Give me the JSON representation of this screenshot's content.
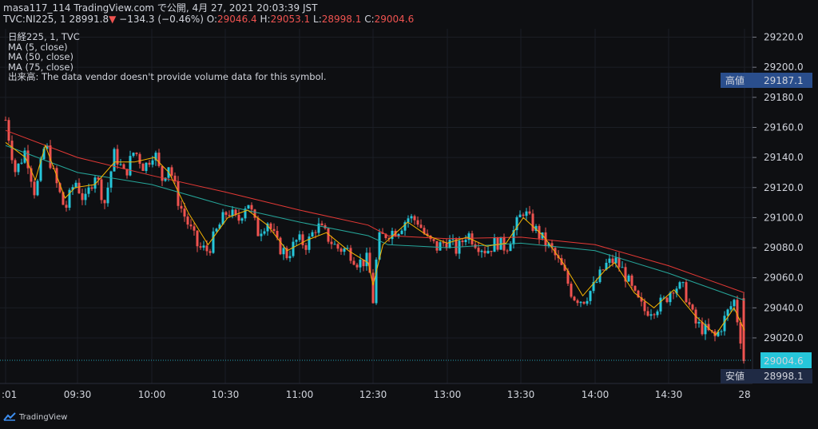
{
  "header": {
    "line1": "masa117_114 TradingView.com で公開, 4月 27, 2021 20:03:39 JST",
    "symbol_line": "TVC:NI225, 1 28991.8",
    "change_arrow": "▼",
    "change": "−134.3 (−0.46%)",
    "o_label": "O:",
    "o_value": "29046.4",
    "h_label": "H:",
    "h_value": "29053.1",
    "l_label": "L:",
    "l_value": "28998.1",
    "c_label": "C:",
    "c_value": "29004.6"
  },
  "legend": {
    "line1": "日経225, 1, TVC",
    "line2": "MA (5, close)",
    "line3": "MA (50, close)",
    "line4": "MA (75, close)",
    "line5": "出来高: The data vendor doesn't provide volume data for this symbol."
  },
  "brand": {
    "name": "TradingView",
    "icon": "tradingview-logo-icon"
  },
  "colors": {
    "background": "#0e0f12",
    "up": "#26c6da",
    "down": "#ef5350",
    "ma5": "#f5b400",
    "ma50": "#26a69a",
    "ma75": "#e53935",
    "high_tag": "#2a4e8c",
    "last_tag": "#26c6da",
    "text": "#d1d4dc"
  },
  "chart_data": {
    "type": "candlestick",
    "y_ticks": [
      "29220.0",
      "29200.0",
      "29180.0",
      "29160.0",
      "29140.0",
      "29120.0",
      "29100.0",
      "29080.0",
      "29060.0",
      "29040.0",
      "29020.0"
    ],
    "ylim": [
      28989.7,
      29225.6
    ],
    "x_ticks": [
      ":01",
      "09:30",
      "10:00",
      "10:30",
      "11:00",
      "12:30",
      "13:00",
      "13:30",
      "14:00",
      "14:30",
      "28"
    ],
    "tags": {
      "high_label": "高値",
      "high_value": "29187.1",
      "last_value": "29004.6",
      "low_label": "安値",
      "low_value": "28998.1"
    },
    "anchors": [
      {
        "x": "9:01",
        "v": 29165
      },
      {
        "x": "9:05",
        "v": 29130
      },
      {
        "x": "9:09",
        "v": 29145
      },
      {
        "x": "9:13",
        "v": 29115
      },
      {
        "x": "9:17",
        "v": 29150
      },
      {
        "x": "9:21",
        "v": 29125
      },
      {
        "x": "9:25",
        "v": 29105
      },
      {
        "x": "9:29",
        "v": 29125
      },
      {
        "x": "9:33",
        "v": 29110
      },
      {
        "x": "9:37",
        "v": 29130
      },
      {
        "x": "9:41",
        "v": 29110
      },
      {
        "x": "9:45",
        "v": 29143
      },
      {
        "x": "9:49",
        "v": 29128
      },
      {
        "x": "9:53",
        "v": 29145
      },
      {
        "x": "9:57",
        "v": 29133
      },
      {
        "x": "10:01",
        "v": 29145
      },
      {
        "x": "10:04",
        "v": 29125
      },
      {
        "x": "10:07",
        "v": 29136
      },
      {
        "x": "10:11",
        "v": 29110
      },
      {
        "x": "10:15",
        "v": 29095
      },
      {
        "x": "10:19",
        "v": 29080
      },
      {
        "x": "10:23",
        "v": 29078
      },
      {
        "x": "10:27",
        "v": 29093
      },
      {
        "x": "10:31",
        "v": 29105
      },
      {
        "x": "10:35",
        "v": 29097
      },
      {
        "x": "10:39",
        "v": 29112
      },
      {
        "x": "10:43",
        "v": 29090
      },
      {
        "x": "10:47",
        "v": 29098
      },
      {
        "x": "10:51",
        "v": 29082
      },
      {
        "x": "10:55",
        "v": 29075
      },
      {
        "x": "10:59",
        "v": 29085
      },
      {
        "x": "11:03",
        "v": 29082
      },
      {
        "x": "11:07",
        "v": 29095
      },
      {
        "x": "11:11",
        "v": 29088
      },
      {
        "x": "11:15",
        "v": 29080
      },
      {
        "x": "11:20",
        "v": 29078
      },
      {
        "x": "11:24",
        "v": 29070
      },
      {
        "x": "11:28",
        "v": 29072
      },
      {
        "x": "12:30",
        "v": 29045
      },
      {
        "x": "12:32",
        "v": 29085
      },
      {
        "x": "12:36",
        "v": 29090
      },
      {
        "x": "12:40",
        "v": 29092
      },
      {
        "x": "12:44",
        "v": 29100
      },
      {
        "x": "12:48",
        "v": 29098
      },
      {
        "x": "12:52",
        "v": 29085
      },
      {
        "x": "12:56",
        "v": 29080
      },
      {
        "x": "13:00",
        "v": 29085
      },
      {
        "x": "13:04",
        "v": 29078
      },
      {
        "x": "13:08",
        "v": 29090
      },
      {
        "x": "13:12",
        "v": 29083
      },
      {
        "x": "13:16",
        "v": 29078
      },
      {
        "x": "13:20",
        "v": 29084
      },
      {
        "x": "13:24",
        "v": 29080
      },
      {
        "x": "13:29",
        "v": 29098
      },
      {
        "x": "13:31",
        "v": 29105
      },
      {
        "x": "13:35",
        "v": 29094
      },
      {
        "x": "13:39",
        "v": 29085
      },
      {
        "x": "13:43",
        "v": 29077
      },
      {
        "x": "13:47",
        "v": 29065
      },
      {
        "x": "13:51",
        "v": 29048
      },
      {
        "x": "13:55",
        "v": 29045
      },
      {
        "x": "14:00",
        "v": 29055
      },
      {
        "x": "14:04",
        "v": 29068
      },
      {
        "x": "14:08",
        "v": 29072
      },
      {
        "x": "14:12",
        "v": 29063
      },
      {
        "x": "14:16",
        "v": 29048
      },
      {
        "x": "14:20",
        "v": 29038
      },
      {
        "x": "14:24",
        "v": 29040
      },
      {
        "x": "14:28",
        "v": 29044
      },
      {
        "x": "14:32",
        "v": 29055
      },
      {
        "x": "14:36",
        "v": 29052
      },
      {
        "x": "14:40",
        "v": 29030
      },
      {
        "x": "14:44",
        "v": 29025
      },
      {
        "x": "14:48",
        "v": 29020
      },
      {
        "x": "14:52",
        "v": 29035
      },
      {
        "x": "14:55",
        "v": 29045
      },
      {
        "x": "14:59",
        "v": 29005
      }
    ],
    "ma5": [
      {
        "x": "9:01",
        "v": 29150
      },
      {
        "x": "9:09",
        "v": 29140
      },
      {
        "x": "9:13",
        "v": 29125
      },
      {
        "x": "9:17",
        "v": 29148
      },
      {
        "x": "9:25",
        "v": 29113
      },
      {
        "x": "9:29",
        "v": 29120
      },
      {
        "x": "9:37",
        "v": 29122
      },
      {
        "x": "9:45",
        "v": 29137
      },
      {
        "x": "9:53",
        "v": 29137
      },
      {
        "x": "10:01",
        "v": 29140
      },
      {
        "x": "10:07",
        "v": 29130
      },
      {
        "x": "10:15",
        "v": 29103
      },
      {
        "x": "10:23",
        "v": 29082
      },
      {
        "x": "10:31",
        "v": 29100
      },
      {
        "x": "10:39",
        "v": 29105
      },
      {
        "x": "10:47",
        "v": 29095
      },
      {
        "x": "10:55",
        "v": 29078
      },
      {
        "x": "11:03",
        "v": 29085
      },
      {
        "x": "11:11",
        "v": 29090
      },
      {
        "x": "11:20",
        "v": 29078
      },
      {
        "x": "11:28",
        "v": 29070
      },
      {
        "x": "12:30",
        "v": 29055
      },
      {
        "x": "12:34",
        "v": 29082
      },
      {
        "x": "12:44",
        "v": 29097
      },
      {
        "x": "12:52",
        "v": 29088
      },
      {
        "x": "13:00",
        "v": 29083
      },
      {
        "x": "13:08",
        "v": 29087
      },
      {
        "x": "13:16",
        "v": 29081
      },
      {
        "x": "13:24",
        "v": 29083
      },
      {
        "x": "13:31",
        "v": 29100
      },
      {
        "x": "13:39",
        "v": 29088
      },
      {
        "x": "13:47",
        "v": 29070
      },
      {
        "x": "13:55",
        "v": 29048
      },
      {
        "x": "14:04",
        "v": 29065
      },
      {
        "x": "14:08",
        "v": 29070
      },
      {
        "x": "14:16",
        "v": 29050
      },
      {
        "x": "14:24",
        "v": 29040
      },
      {
        "x": "14:32",
        "v": 29052
      },
      {
        "x": "14:40",
        "v": 29035
      },
      {
        "x": "14:48",
        "v": 29022
      },
      {
        "x": "14:55",
        "v": 29040
      },
      {
        "x": "14:59",
        "v": 29025
      }
    ],
    "ma50": [
      {
        "x": "9:01",
        "v": 29148
      },
      {
        "x": "9:30",
        "v": 29130
      },
      {
        "x": "10:00",
        "v": 29122
      },
      {
        "x": "10:30",
        "v": 29108
      },
      {
        "x": "11:00",
        "v": 29097
      },
      {
        "x": "11:28",
        "v": 29088
      },
      {
        "x": "12:36",
        "v": 29082
      },
      {
        "x": "13:00",
        "v": 29080
      },
      {
        "x": "13:30",
        "v": 29083
      },
      {
        "x": "14:00",
        "v": 29078
      },
      {
        "x": "14:30",
        "v": 29063
      },
      {
        "x": "14:59",
        "v": 29045
      }
    ],
    "ma75": [
      {
        "x": "9:01",
        "v": 29158
      },
      {
        "x": "9:30",
        "v": 29140
      },
      {
        "x": "10:00",
        "v": 29128
      },
      {
        "x": "10:30",
        "v": 29117
      },
      {
        "x": "11:00",
        "v": 29105
      },
      {
        "x": "11:28",
        "v": 29095
      },
      {
        "x": "12:36",
        "v": 29088
      },
      {
        "x": "13:00",
        "v": 29086
      },
      {
        "x": "13:30",
        "v": 29087
      },
      {
        "x": "14:00",
        "v": 29082
      },
      {
        "x": "14:30",
        "v": 29068
      },
      {
        "x": "14:59",
        "v": 29050
      }
    ]
  }
}
